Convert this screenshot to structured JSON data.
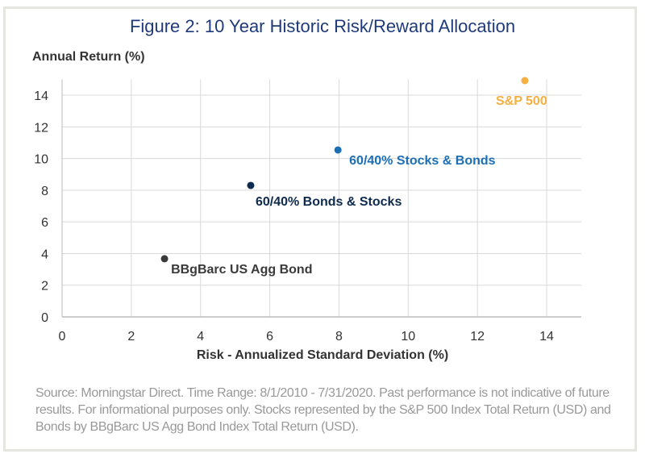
{
  "chart_data": {
    "type": "scatter",
    "title": "Figure 2:  10 Year Historic Risk/Reward Allocation",
    "xlabel": "Risk - Annualized Standard Deviation (%)",
    "ylabel": "Annual Return (%)",
    "xlim": [
      0,
      15
    ],
    "ylim": [
      0,
      15
    ],
    "xticks": [
      0,
      2,
      4,
      6,
      8,
      10,
      12,
      14
    ],
    "yticks": [
      0,
      2,
      4,
      6,
      8,
      10,
      12,
      14
    ],
    "grid": true,
    "points": [
      {
        "label": "BBgBarc US Agg Bond",
        "x": 2.96,
        "y": 3.67,
        "color": "#3a3a3a"
      },
      {
        "label": "60/40% Bonds & Stocks",
        "x": 5.45,
        "y": 8.3,
        "color": "#0f2a4f"
      },
      {
        "label": "60/40% Stocks & Bonds",
        "x": 7.97,
        "y": 10.54,
        "color": "#1c6fb5"
      },
      {
        "label": "S&P 500",
        "x": 13.37,
        "y": 14.92,
        "color": "#f5b041"
      }
    ]
  },
  "source": "Source: Morningstar Direct. Time Range: 8/1/2010 - 7/31/2020. Past performance is not indicative of future results. For informational purposes only. Stocks represented by the S&P 500 Index Total Return (USD) and Bonds by BBgBarc US Agg Bond Index Total Return (USD).",
  "colors": {
    "title": "#1f3a7a",
    "grid": "#d9d9d9",
    "source_text": "#999999"
  }
}
